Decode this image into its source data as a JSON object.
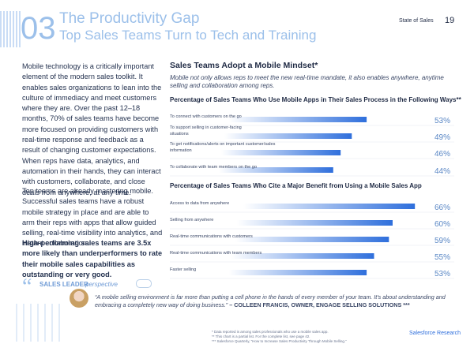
{
  "header": {
    "number": "03",
    "title": "The Productivity Gap",
    "subtitle": "Top Sales Teams Turn to Tech and Training",
    "report": "State of Sales",
    "page": "19"
  },
  "body": {
    "paragraph1": "Mobile technology is a critically important element of the modern sales toolkit. It enables sales organizations to lean into the culture of immediacy and meet customers where they are. Over the past 12–18 months, 70% of sales teams have become more focused on providing customers with real-time response and feedback as a result of changing customer expectations. When reps have data, analytics, and automation in their hands, they can interact with customers, collaborate, and close deals from anywhere, at any time.",
    "paragraph2": "Top teams are already mastering mobile. Successful sales teams have a robust mobile strategy in place and are able to arm their reps with apps that allow guided selling, real-time visibility into analytics, and instant collaboration.",
    "highlight": "High-performing sales teams are 3.5x more likely than underperformers to rate their mobile sales capabilities as outstanding or very good."
  },
  "section": {
    "title": "Sales Teams Adopt a Mobile Mindset*",
    "intro": "Mobile not only allows reps to meet the new real-time mandate, it also enables anywhere, anytime selling and collaboration among reps."
  },
  "chart_data": [
    {
      "type": "bar",
      "orientation": "horizontal",
      "title": "Percentage of Sales Teams Who Use Mobile Apps in Their Sales Process in the Following Ways**",
      "color": "#2f6fdc",
      "categories": [
        "To connect with customers on the go",
        "To support selling in customer-facing situations",
        "To get notifications/alerts on important customer/sales information",
        "To collaborate with team members on the go"
      ],
      "values": [
        53,
        49,
        46,
        44
      ],
      "value_labels": [
        "53%",
        "49%",
        "46%",
        "44%"
      ]
    },
    {
      "type": "bar",
      "orientation": "horizontal",
      "title": "Percentage of Sales Teams Who Cite a Major Benefit from Using a Mobile Sales App",
      "color": "#2f6fdc",
      "categories": [
        "Access to data from anywhere",
        "Selling from anywhere",
        "Real-time communications with customers",
        "Real-time communications with team members",
        "Faster selling"
      ],
      "values": [
        66,
        60,
        59,
        55,
        53
      ],
      "value_labels": [
        "66%",
        "60%",
        "59%",
        "55%",
        "53%"
      ]
    }
  ],
  "perspective": {
    "label": "SALES LEADER",
    "label2": "perspective",
    "quote": "“A mobile selling environment is far more than putting a cell phone in the hands of every member of your team. It's about understanding and embracing a completely new way of doing business.”",
    "attribution": "– COLLEEN FRANCIS, OWNER, ENGAGE SELLING SOLUTIONS ***"
  },
  "footer": {
    "notes": [
      "* Data reported is among sales professionals who use a mobile sales app.",
      "** This chart is a partial list. For the complete list, see page 42.",
      "*** Salesforce Quarterly, “How to Increase Sales Productivity Through Mobile Selling.”"
    ],
    "source": "Salesforce Research"
  }
}
